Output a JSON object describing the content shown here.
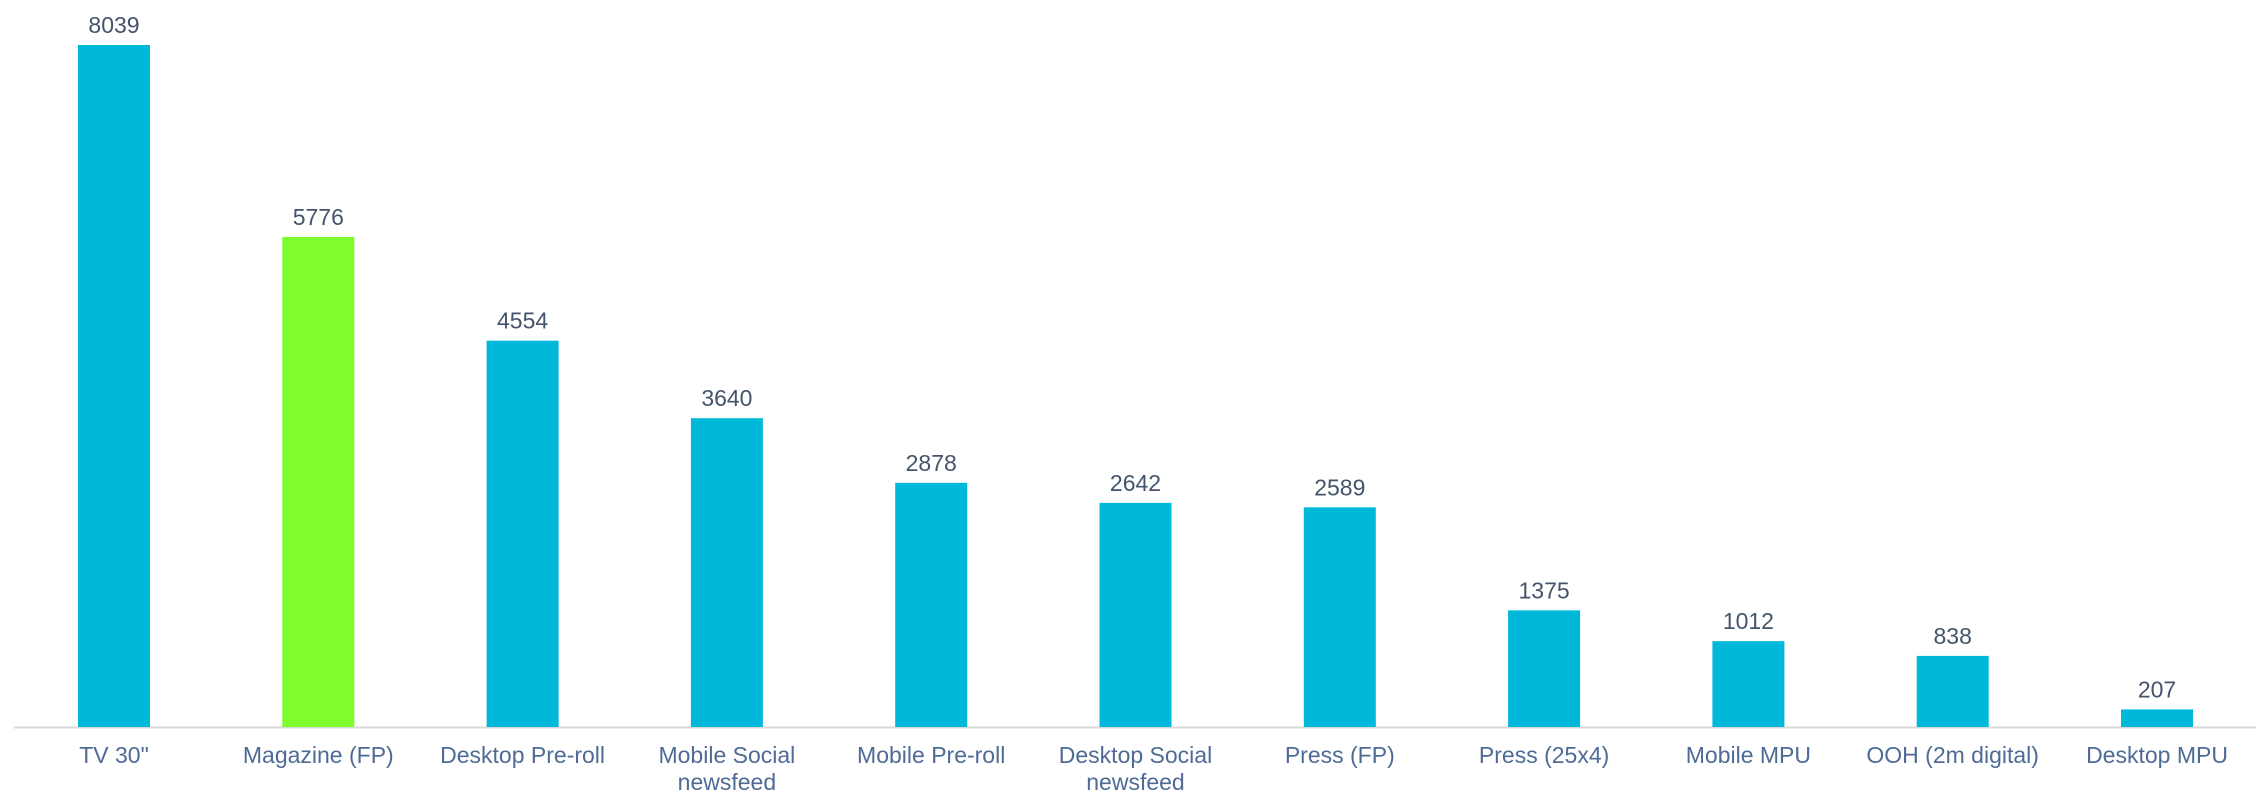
{
  "chart_data": {
    "type": "bar",
    "categories": [
      "TV 30\"",
      "Magazine (FP)",
      "Desktop Pre-roll",
      "Mobile Social newsfeed",
      "Mobile Pre-roll",
      "Desktop Social newsfeed",
      "Press (FP)",
      "Press (25x4)",
      "Mobile MPU",
      "OOH (2m digital)",
      "Desktop MPU"
    ],
    "values": [
      8039,
      5776,
      4554,
      3640,
      2878,
      2642,
      2589,
      1375,
      1012,
      838,
      207
    ],
    "colors": [
      "#00b8d9",
      "#7ffc2e",
      "#00b8d9",
      "#00b8d9",
      "#00b8d9",
      "#00b8d9",
      "#00b8d9",
      "#00b8d9",
      "#00b8d9",
      "#00b8d9",
      "#00b8d9"
    ]
  }
}
